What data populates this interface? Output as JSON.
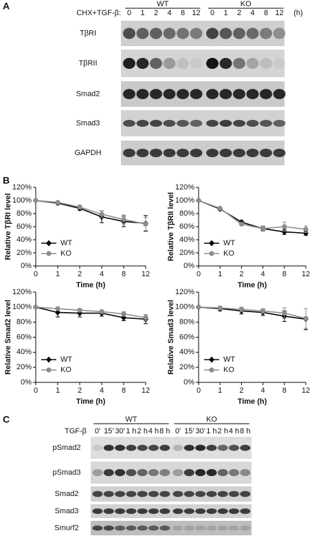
{
  "panel_a": {
    "label": "A",
    "treatment": "CHX+TGF-β:",
    "groups": [
      "WT",
      "KO"
    ],
    "lanes": [
      "0",
      "1",
      "2",
      "4",
      "8",
      "12"
    ],
    "unit": "(h)",
    "blots": [
      "TβRI",
      "TβRII",
      "Smad2",
      "Smad3",
      "GAPDH"
    ]
  },
  "panel_b": {
    "label": "B"
  },
  "chart_data": [
    {
      "type": "line",
      "y_label": "Relative TβRI level",
      "x_label": "Time (h)",
      "categories": [
        0,
        1,
        2,
        4,
        8,
        12
      ],
      "ylim": [
        0,
        120
      ],
      "yticks": [
        {
          "value": 0,
          "label": "0%"
        },
        {
          "value": 20,
          "label": "20%"
        },
        {
          "value": 40,
          "label": "40%"
        },
        {
          "value": 60,
          "label": "60%"
        },
        {
          "value": 80,
          "label": "80%"
        },
        {
          "value": 100,
          "label": "100%"
        },
        {
          "value": 120,
          "label": "120%"
        }
      ],
      "legend": "lower-left",
      "series": [
        {
          "name": "WT",
          "color": "#000000",
          "marker": "diamond",
          "values": [
            100,
            96,
            88,
            75,
            68,
            65
          ],
          "errors": [
            0,
            2,
            3,
            9,
            8,
            12
          ]
        },
        {
          "name": "KO",
          "color": "#8c8c8c",
          "marker": "circle",
          "values": [
            100,
            97,
            90,
            79,
            71,
            64
          ],
          "errors": [
            0,
            2,
            3,
            5,
            7,
            10
          ]
        }
      ]
    },
    {
      "type": "line",
      "y_label": "Relative TβRII level",
      "x_label": "Time (h)",
      "categories": [
        0,
        1,
        2,
        4,
        8,
        12
      ],
      "ylim": [
        0,
        120
      ],
      "yticks": [
        {
          "value": 0,
          "label": "0%"
        },
        {
          "value": 20,
          "label": "20%"
        },
        {
          "value": 40,
          "label": "40%"
        },
        {
          "value": 60,
          "label": "60%"
        },
        {
          "value": 80,
          "label": "80%"
        },
        {
          "value": 100,
          "label": "100%"
        },
        {
          "value": 120,
          "label": "120%"
        }
      ],
      "legend": "lower-left",
      "series": [
        {
          "name": "WT",
          "color": "#000000",
          "marker": "diamond",
          "values": [
            100,
            87,
            67,
            57,
            52,
            50
          ],
          "errors": [
            0,
            2,
            2,
            3,
            4,
            3
          ]
        },
        {
          "name": "KO",
          "color": "#8c8c8c",
          "marker": "circle",
          "values": [
            100,
            88,
            64,
            57,
            60,
            56
          ],
          "errors": [
            0,
            2,
            2,
            4,
            7,
            5
          ]
        }
      ]
    },
    {
      "type": "line",
      "y_label": "Relative Smad2 level",
      "x_label": "Time (h)",
      "categories": [
        0,
        1,
        2,
        4,
        8,
        12
      ],
      "ylim": [
        0,
        120
      ],
      "yticks": [
        {
          "value": 0,
          "label": "0%"
        },
        {
          "value": 20,
          "label": "20%"
        },
        {
          "value": 40,
          "label": "40%"
        },
        {
          "value": 60,
          "label": "60%"
        },
        {
          "value": 80,
          "label": "80%"
        },
        {
          "value": 100,
          "label": "100%"
        },
        {
          "value": 120,
          "label": "120%"
        }
      ],
      "legend": "lower-left",
      "series": [
        {
          "name": "WT",
          "color": "#000000",
          "marker": "diamond",
          "values": [
            100,
            93,
            92,
            92,
            86,
            84
          ],
          "errors": [
            0,
            6,
            5,
            4,
            4,
            6
          ]
        },
        {
          "name": "KO",
          "color": "#8c8c8c",
          "marker": "circle",
          "values": [
            100,
            98,
            96,
            94,
            91,
            86
          ],
          "errors": [
            0,
            2,
            2,
            2,
            3,
            4
          ]
        }
      ]
    },
    {
      "type": "line",
      "y_label": "Relative Smad3 level",
      "x_label": "Time (h)",
      "categories": [
        0,
        1,
        2,
        4,
        8,
        12
      ],
      "ylim": [
        0,
        120
      ],
      "yticks": [
        {
          "value": 0,
          "label": "0%"
        },
        {
          "value": 20,
          "label": "20%"
        },
        {
          "value": 40,
          "label": "40%"
        },
        {
          "value": 60,
          "label": "60%"
        },
        {
          "value": 80,
          "label": "80%"
        },
        {
          "value": 100,
          "label": "100%"
        },
        {
          "value": 120,
          "label": "120%"
        }
      ],
      "legend": "lower-left",
      "series": [
        {
          "name": "WT",
          "color": "#000000",
          "marker": "diamond",
          "values": [
            100,
            98,
            95,
            93,
            88,
            84
          ],
          "errors": [
            0,
            3,
            4,
            4,
            7,
            14
          ]
        },
        {
          "name": "KO",
          "color": "#8c8c8c",
          "marker": "circle",
          "values": [
            100,
            99,
            97,
            95,
            92,
            85
          ],
          "errors": [
            0,
            2,
            3,
            3,
            7,
            13
          ]
        }
      ]
    }
  ],
  "panel_c": {
    "label": "C",
    "treatment": "TGF-β",
    "groups": [
      "WT",
      "KO"
    ],
    "lanes": [
      "0′",
      "15′",
      "30′",
      "1 h",
      "2 h",
      "4 h",
      "8 h"
    ],
    "blots": [
      "pSmad2",
      "pSmad3",
      "Smad2",
      "Smad3",
      "Smurf2"
    ]
  }
}
